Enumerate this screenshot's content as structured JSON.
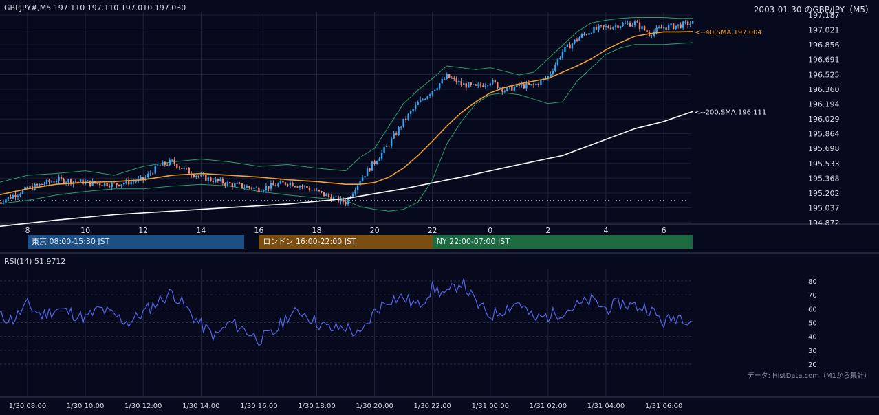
{
  "header": {
    "symbol_line": "GBPJPY#,M5 197.110 197.110 197.010 197.030",
    "date_title": "2003-01-30 のGBP/JPY（M5）"
  },
  "colors": {
    "background": "#070a1c",
    "up_candle": "#3aa6f2",
    "down_candle": "#f08a74",
    "sma40": "#f0a030",
    "sma200": "#ffffff",
    "bollinger": "#2aa06a",
    "rsi": "#5864e8",
    "tokyo": "#1e4f82",
    "london": "#7a4d10",
    "ny": "#1d6a40"
  },
  "chart_data": [
    {
      "type": "candlestick",
      "title": "",
      "y_ticks": [
        "197.187",
        "197.021",
        "196.856",
        "196.691",
        "196.525",
        "196.360",
        "196.194",
        "196.029",
        "195.864",
        "195.698",
        "195.533",
        "195.368",
        "195.202",
        "195.037",
        "194.872"
      ],
      "ylim": [
        194.872,
        197.187
      ],
      "x_hour_ticks": [
        "8",
        "10",
        "12",
        "14",
        "16",
        "18",
        "20",
        "22",
        "0",
        "2",
        "4",
        "6"
      ],
      "reference_line": 195.12,
      "sma40": {
        "label": "<--40,SMA,197.004",
        "x_hours": [
          7.0,
          8.0,
          9.0,
          10.0,
          11.0,
          12.0,
          13.0,
          14.0,
          15.0,
          16.0,
          17.0,
          18.0,
          19.0,
          19.5,
          20.0,
          20.5,
          21.0,
          21.5,
          22.0,
          22.5,
          23.0,
          23.5,
          24.0,
          24.5,
          25.0,
          25.5,
          26.0,
          26.5,
          27.0,
          27.5,
          28.0,
          28.5,
          29.0,
          29.5,
          30.0,
          30.5,
          31.0
        ],
        "values": [
          195.18,
          195.25,
          195.3,
          195.32,
          195.33,
          195.35,
          195.4,
          195.42,
          195.4,
          195.38,
          195.35,
          195.33,
          195.3,
          195.3,
          195.32,
          195.38,
          195.48,
          195.62,
          195.78,
          195.95,
          196.1,
          196.22,
          196.32,
          196.38,
          196.42,
          196.45,
          196.48,
          196.55,
          196.62,
          196.7,
          196.8,
          196.88,
          196.95,
          196.98,
          197.0,
          197.0,
          197.004
        ]
      },
      "sma200": {
        "label": "<--200,SMA,196.111",
        "x_hours": [
          7.0,
          9.0,
          11.0,
          13.0,
          15.0,
          17.0,
          19.0,
          21.0,
          23.0,
          25.0,
          26.5,
          28.0,
          29.0,
          30.0,
          31.0
        ],
        "values": [
          194.83,
          194.9,
          194.96,
          195.0,
          195.04,
          195.08,
          195.14,
          195.25,
          195.38,
          195.52,
          195.62,
          195.8,
          195.92,
          196.0,
          196.111
        ]
      },
      "bollinger_upper": {
        "x_hours": [
          7.0,
          8.0,
          9.0,
          10.0,
          11.0,
          12.0,
          13.0,
          14.0,
          15.0,
          16.0,
          17.0,
          18.0,
          19.0,
          19.5,
          20.0,
          20.5,
          21.0,
          21.5,
          22.0,
          22.5,
          23.0,
          23.5,
          24.0,
          24.5,
          25.0,
          25.5,
          26.0,
          26.5,
          27.0,
          27.5,
          28.0,
          28.5,
          29.0,
          29.5,
          30.0,
          30.5,
          31.0
        ],
        "values": [
          195.32,
          195.4,
          195.42,
          195.45,
          195.4,
          195.5,
          195.55,
          195.58,
          195.55,
          195.5,
          195.52,
          195.48,
          195.45,
          195.6,
          195.7,
          195.95,
          196.2,
          196.35,
          196.48,
          196.62,
          196.6,
          196.58,
          196.6,
          196.56,
          196.52,
          196.55,
          196.7,
          196.85,
          197.0,
          197.1,
          197.13,
          197.15,
          197.16,
          197.16,
          197.16,
          197.15,
          197.15
        ]
      },
      "bollinger_lower": {
        "x_hours": [
          7.0,
          8.0,
          9.0,
          10.0,
          11.0,
          12.0,
          13.0,
          14.0,
          15.0,
          16.0,
          17.0,
          18.0,
          19.0,
          19.5,
          20.0,
          20.5,
          21.0,
          21.5,
          22.0,
          22.5,
          23.0,
          23.5,
          24.0,
          24.5,
          25.0,
          25.5,
          26.0,
          26.5,
          27.0,
          27.5,
          28.0,
          28.5,
          29.0,
          29.5,
          30.0,
          30.5,
          31.0
        ],
        "values": [
          195.08,
          195.12,
          195.18,
          195.22,
          195.25,
          195.25,
          195.28,
          195.3,
          195.28,
          195.22,
          195.18,
          195.15,
          195.12,
          195.05,
          195.02,
          195.0,
          195.02,
          195.1,
          195.35,
          195.75,
          196.0,
          196.2,
          196.3,
          196.32,
          196.3,
          196.25,
          196.2,
          196.22,
          196.45,
          196.6,
          196.75,
          196.82,
          196.86,
          196.86,
          196.86,
          196.87,
          196.88
        ]
      },
      "price_path": {
        "x_hours": [
          7.0,
          8.0,
          9.0,
          10.0,
          11.0,
          12.0,
          12.5,
          13.0,
          13.5,
          14.0,
          15.0,
          16.0,
          17.0,
          17.5,
          18.0,
          18.5,
          19.0,
          19.5,
          20.0,
          20.5,
          21.0,
          21.5,
          22.0,
          22.5,
          23.0,
          23.5,
          24.0,
          24.5,
          25.0,
          25.5,
          26.0,
          26.5,
          27.0,
          27.5,
          28.0,
          28.5,
          29.0,
          29.5,
          30.0,
          30.5,
          31.0
        ],
        "values": [
          195.1,
          195.25,
          195.35,
          195.32,
          195.3,
          195.35,
          195.5,
          195.55,
          195.45,
          195.38,
          195.3,
          195.25,
          195.32,
          195.28,
          195.22,
          195.15,
          195.1,
          195.35,
          195.55,
          195.75,
          196.0,
          196.2,
          196.35,
          196.5,
          196.42,
          196.38,
          196.45,
          196.35,
          196.4,
          196.4,
          196.5,
          196.78,
          196.92,
          197.02,
          197.05,
          197.08,
          197.1,
          196.98,
          197.05,
          197.07,
          197.1
        ]
      }
    },
    {
      "type": "line",
      "title": "RSI(14) 51.9712",
      "y_ticks": [
        "80",
        "70",
        "60",
        "50",
        "40",
        "30",
        "20"
      ],
      "ylim": [
        16,
        86
      ],
      "x_hours": [
        7.0,
        7.5,
        8.0,
        8.5,
        9.0,
        9.5,
        10.0,
        10.5,
        11.0,
        11.5,
        12.0,
        12.5,
        13.0,
        13.5,
        14.0,
        14.5,
        15.0,
        15.5,
        16.0,
        16.5,
        17.0,
        17.5,
        18.0,
        18.5,
        19.0,
        19.5,
        20.0,
        20.5,
        21.0,
        21.5,
        22.0,
        22.5,
        23.0,
        23.5,
        24.0,
        24.5,
        25.0,
        25.5,
        26.0,
        26.5,
        27.0,
        27.5,
        28.0,
        28.5,
        29.0,
        29.5,
        30.0,
        30.5,
        31.0
      ],
      "values": [
        55,
        52,
        63,
        55,
        60,
        57,
        53,
        60,
        55,
        50,
        57,
        65,
        72,
        60,
        48,
        40,
        50,
        45,
        38,
        42,
        55,
        58,
        50,
        45,
        47,
        40,
        58,
        67,
        68,
        62,
        75,
        70,
        80,
        64,
        55,
        60,
        65,
        52,
        55,
        58,
        62,
        66,
        60,
        64,
        62,
        60,
        50,
        55,
        52
      ]
    }
  ],
  "session_bars": [
    {
      "label": "東京 08:00-15:30 JST",
      "start_hour": 8.0,
      "end_hour": 15.5,
      "color": "#1e4f82"
    },
    {
      "label": "ロンドン 16:00-22:00 JST",
      "start_hour": 16.0,
      "end_hour": 22.0,
      "color": "#7a4d10"
    },
    {
      "label": "NY 22:00-07:00 JST",
      "start_hour": 22.0,
      "end_hour": 31.0,
      "color": "#1d6a40"
    }
  ],
  "x_time_ticks": [
    "1/30 08:00",
    "1/30 10:00",
    "1/30 12:00",
    "1/30 14:00",
    "1/30 16:00",
    "1/30 18:00",
    "1/30 20:00",
    "1/30 22:00",
    "1/31 00:00",
    "1/31 02:00",
    "1/31 04:00",
    "1/31 06:00"
  ],
  "source_note": "データ: HistData.com（M1から集計）"
}
